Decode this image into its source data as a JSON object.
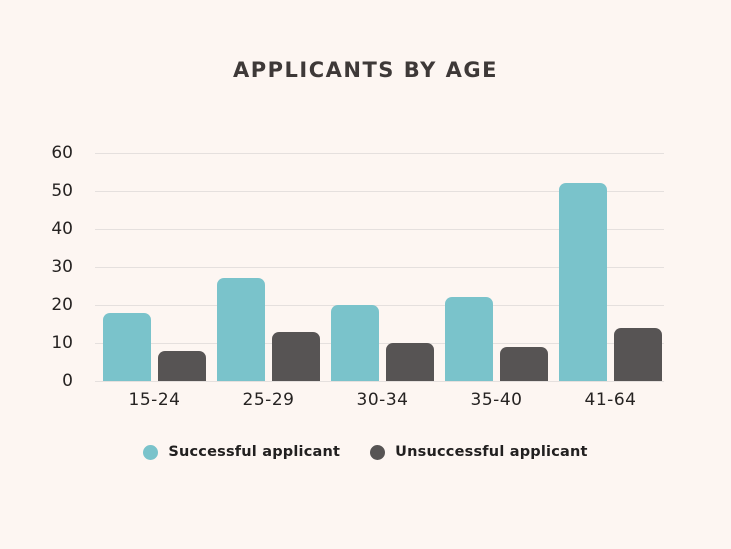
{
  "chart_data": {
    "type": "bar",
    "title": "APPLICANTS BY AGE",
    "categories": [
      "15-24",
      "25-29",
      "30-34",
      "35-40",
      "41-64"
    ],
    "series": [
      {
        "name": "Successful applicant",
        "color": "#7ac3cb",
        "values": [
          18,
          27,
          20,
          22,
          52
        ]
      },
      {
        "name": "Unsuccessful applicant",
        "color": "#575454",
        "values": [
          8,
          13,
          10,
          9,
          14
        ]
      }
    ],
    "xlabel": "",
    "ylabel": "",
    "ylim": [
      0,
      60
    ],
    "yticks": [
      0,
      10,
      20,
      30,
      40,
      50,
      60
    ],
    "grid": true,
    "legend_position": "bottom"
  },
  "style": {
    "background": "#fdf6f2",
    "grid_color": "#e5e0de",
    "title_color": "#3e3938",
    "tick_label_color": "#262322",
    "legend_text_color": "#222020"
  }
}
